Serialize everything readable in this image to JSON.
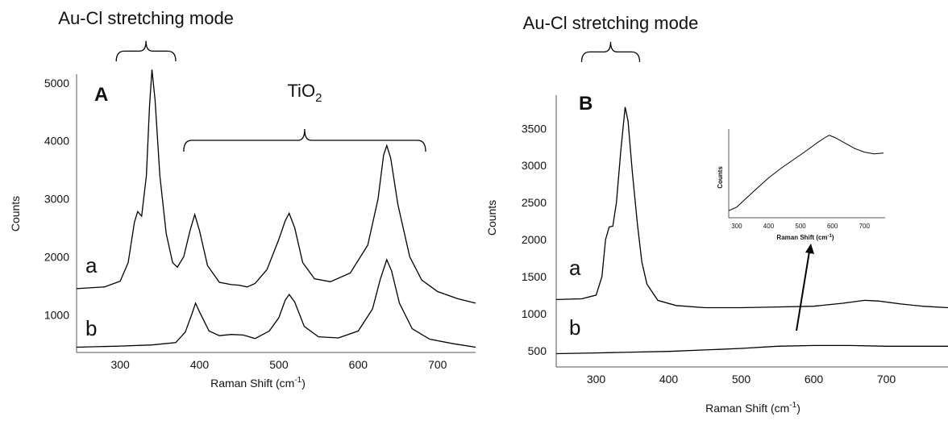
{
  "chart_data": [
    {
      "panel_label": "A",
      "type": "line",
      "xlabel": "Raman Shift (cm",
      "xlabel_sup": "-1",
      "xlabel_tail": ")",
      "ylabel": "Counts",
      "xlim": [
        245,
        748
      ],
      "ylim": [
        350,
        5150
      ],
      "x_ticks": [
        300,
        400,
        500,
        600,
        700
      ],
      "y_ticks": [
        1000,
        2000,
        3000,
        4000,
        5000
      ],
      "grid": false,
      "annotations": {
        "bracket1_label": "Au-Cl stretching mode",
        "bracket1_range": [
          295,
          370
        ],
        "bracket2_label": "TiO",
        "bracket2_sub": "2",
        "bracket2_range": [
          380,
          685
        ]
      },
      "series": [
        {
          "name": "a",
          "points": [
            [
              245,
              1450
            ],
            [
              280,
              1480
            ],
            [
              300,
              1580
            ],
            [
              310,
              1900
            ],
            [
              318,
              2600
            ],
            [
              322,
              2780
            ],
            [
              327,
              2700
            ],
            [
              333,
              3400
            ],
            [
              337,
              4600
            ],
            [
              340,
              5230
            ],
            [
              344,
              4700
            ],
            [
              350,
              3400
            ],
            [
              358,
              2400
            ],
            [
              366,
              1900
            ],
            [
              372,
              1820
            ],
            [
              380,
              2000
            ],
            [
              388,
              2450
            ],
            [
              394,
              2730
            ],
            [
              400,
              2450
            ],
            [
              410,
              1850
            ],
            [
              425,
              1560
            ],
            [
              440,
              1520
            ],
            [
              450,
              1510
            ],
            [
              460,
              1480
            ],
            [
              470,
              1540
            ],
            [
              485,
              1780
            ],
            [
              500,
              2300
            ],
            [
              508,
              2620
            ],
            [
              513,
              2750
            ],
            [
              520,
              2500
            ],
            [
              530,
              1900
            ],
            [
              545,
              1620
            ],
            [
              565,
              1570
            ],
            [
              590,
              1720
            ],
            [
              612,
              2200
            ],
            [
              625,
              3000
            ],
            [
              632,
              3750
            ],
            [
              636,
              3920
            ],
            [
              641,
              3700
            ],
            [
              650,
              2900
            ],
            [
              665,
              2000
            ],
            [
              680,
              1600
            ],
            [
              700,
              1400
            ],
            [
              725,
              1280
            ],
            [
              748,
              1200
            ]
          ]
        },
        {
          "name": "b",
          "points": [
            [
              245,
              440
            ],
            [
              300,
              460
            ],
            [
              340,
              480
            ],
            [
              370,
              520
            ],
            [
              382,
              700
            ],
            [
              390,
              1000
            ],
            [
              395,
              1200
            ],
            [
              400,
              1050
            ],
            [
              412,
              720
            ],
            [
              425,
              640
            ],
            [
              440,
              660
            ],
            [
              455,
              650
            ],
            [
              470,
              590
            ],
            [
              488,
              720
            ],
            [
              500,
              950
            ],
            [
              508,
              1250
            ],
            [
              513,
              1350
            ],
            [
              520,
              1220
            ],
            [
              532,
              800
            ],
            [
              550,
              620
            ],
            [
              575,
              600
            ],
            [
              600,
              720
            ],
            [
              618,
              1100
            ],
            [
              628,
              1620
            ],
            [
              636,
              1950
            ],
            [
              642,
              1760
            ],
            [
              652,
              1200
            ],
            [
              668,
              760
            ],
            [
              690,
              580
            ],
            [
              720,
              500
            ],
            [
              748,
              440
            ]
          ]
        }
      ]
    },
    {
      "panel_label": "B",
      "type": "line",
      "xlabel": "Raman Shift (cm",
      "xlabel_sup": "-1",
      "xlabel_tail": ")",
      "ylabel": "Counts",
      "xlim": [
        245,
        785
      ],
      "ylim": [
        280,
        3950
      ],
      "x_ticks": [
        300,
        400,
        500,
        600,
        700
      ],
      "y_ticks": [
        500,
        1000,
        1500,
        2000,
        2500,
        3000,
        3500
      ],
      "grid": false,
      "annotations": {
        "bracket1_label": "Au-Cl stretching mode",
        "bracket1_range": [
          280,
          360
        ]
      },
      "series": [
        {
          "name": "a",
          "points": [
            [
              245,
              1190
            ],
            [
              280,
              1200
            ],
            [
              300,
              1250
            ],
            [
              308,
              1500
            ],
            [
              313,
              2000
            ],
            [
              318,
              2170
            ],
            [
              323,
              2180
            ],
            [
              328,
              2500
            ],
            [
              334,
              3200
            ],
            [
              340,
              3790
            ],
            [
              344,
              3600
            ],
            [
              350,
              2900
            ],
            [
              357,
              2200
            ],
            [
              363,
              1700
            ],
            [
              370,
              1400
            ],
            [
              385,
              1180
            ],
            [
              410,
              1110
            ],
            [
              450,
              1080
            ],
            [
              500,
              1080
            ],
            [
              550,
              1090
            ],
            [
              600,
              1100
            ],
            [
              640,
              1140
            ],
            [
              670,
              1180
            ],
            [
              690,
              1170
            ],
            [
              720,
              1130
            ],
            [
              750,
              1100
            ],
            [
              785,
              1080
            ]
          ]
        },
        {
          "name": "b",
          "points": [
            [
              245,
              460
            ],
            [
              300,
              470
            ],
            [
              350,
              480
            ],
            [
              400,
              490
            ],
            [
              450,
              510
            ],
            [
              500,
              530
            ],
            [
              550,
              560
            ],
            [
              600,
              570
            ],
            [
              650,
              570
            ],
            [
              700,
              560
            ],
            [
              750,
              560
            ],
            [
              785,
              560
            ]
          ]
        }
      ],
      "inset": {
        "xlabel": "Raman Shift (cm",
        "xlabel_sup": "-1",
        "xlabel_tail": ")",
        "ylabel": "Counts",
        "xlim": [
          275,
          765
        ],
        "x_ticks": [
          300,
          400,
          500,
          600,
          700
        ],
        "ylim": [
          0,
          1
        ],
        "points": [
          [
            275,
            0.08
          ],
          [
            300,
            0.12
          ],
          [
            330,
            0.22
          ],
          [
            360,
            0.32
          ],
          [
            400,
            0.45
          ],
          [
            440,
            0.56
          ],
          [
            480,
            0.66
          ],
          [
            520,
            0.76
          ],
          [
            550,
            0.84
          ],
          [
            575,
            0.9
          ],
          [
            590,
            0.93
          ],
          [
            610,
            0.9
          ],
          [
            640,
            0.84
          ],
          [
            670,
            0.78
          ],
          [
            700,
            0.74
          ],
          [
            730,
            0.72
          ],
          [
            760,
            0.73
          ]
        ]
      }
    }
  ]
}
